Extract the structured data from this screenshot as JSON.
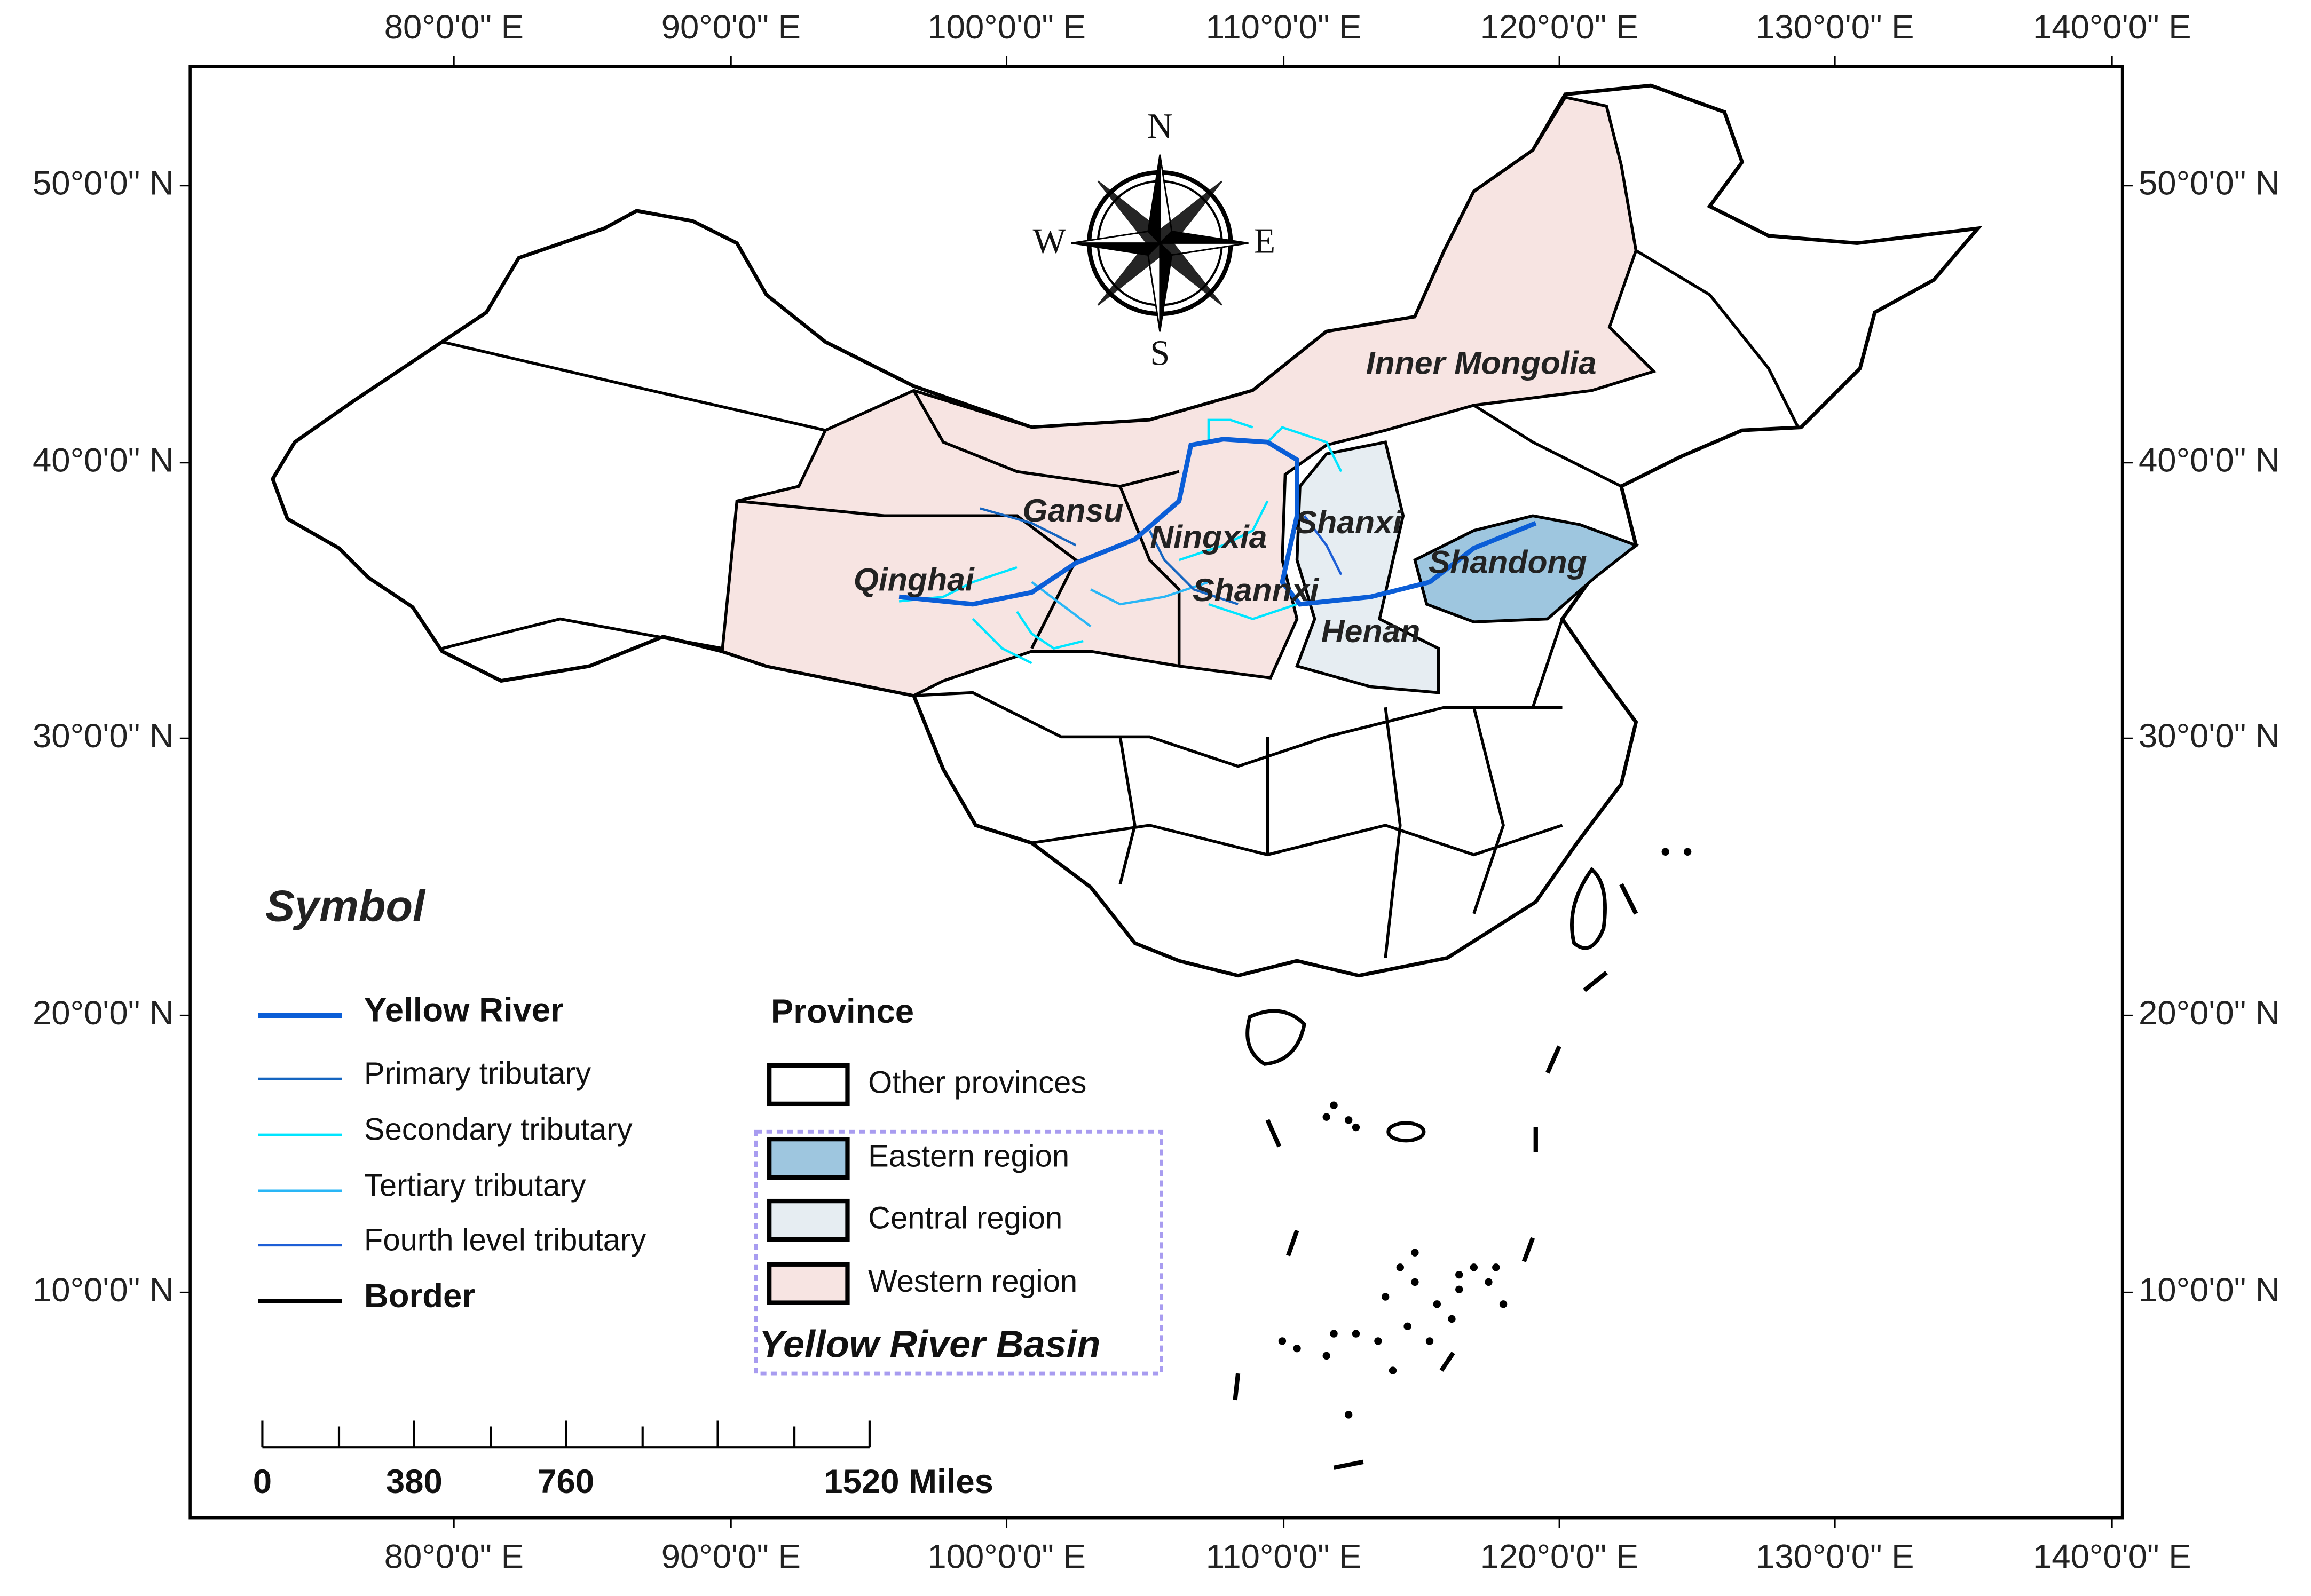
{
  "map": {
    "longitude_labels": [
      "80°0'0\" E",
      "90°0'0\" E",
      "100°0'0\" E",
      "110°0'0\" E",
      "120°0'0\" E",
      "130°0'0\" E",
      "140°0'0\" E"
    ],
    "latitude_labels": [
      "50°0'0\" N",
      "40°0'0\" N",
      "30°0'0\" N",
      "20°0'0\" N",
      "10°0'0\" N"
    ],
    "compass": {
      "north": "N",
      "east": "E",
      "south": "S",
      "west": "W"
    },
    "regions": [
      "Inner Mongolia",
      "Gansu",
      "Ningxia",
      "Shanxi",
      "Qinghai",
      "Shannxi",
      "Shandong",
      "Henan"
    ],
    "legend": {
      "title": "Symbol",
      "lines": [
        "Yellow River",
        "Primary tributary",
        "Secondary tributary",
        "Tertiary tributary",
        "Fourth level tributary",
        "Border"
      ],
      "province_title": "Province",
      "provinces": [
        "Other provinces",
        "Eastern region",
        "Central region",
        "Western region"
      ],
      "basin": "Yellow River Basin"
    },
    "scale_bar": [
      "0",
      "380",
      "760",
      "1520 Miles"
    ]
  }
}
